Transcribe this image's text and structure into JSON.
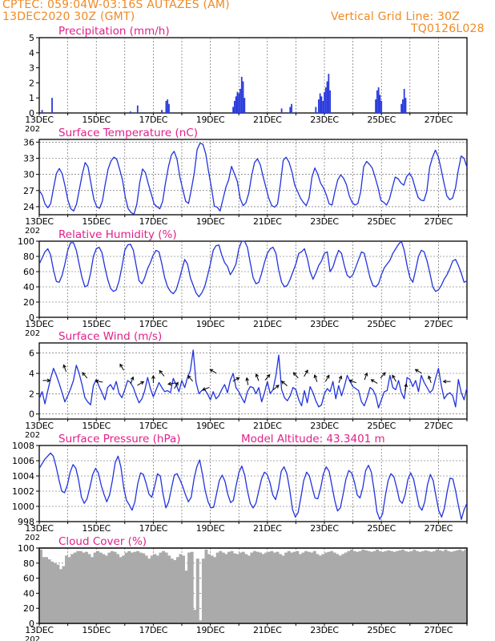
{
  "header": {
    "line1": "CPTEC:   059:04W-03:16S   AUTAZES (AM)",
    "line2": "13DEC2020 30Z (GMT)",
    "grid_note": "Vertical Grid Line: 30Z",
    "model_code": "TQ0126L028"
  },
  "colors": {
    "header": "#f08a24",
    "title": "#e0208a",
    "series": "#2233dd",
    "bar": "#2a3bdc",
    "cloud": "#aaaaaa",
    "grid": "#555555"
  },
  "x_axis": {
    "labels": [
      "13DEC",
      "15DEC",
      "17DEC",
      "19DEC",
      "21DEC",
      "23DEC",
      "25DEC",
      "27DEC"
    ],
    "year_prefix": "202"
  },
  "chart_data": [
    {
      "id": "precip",
      "type": "bar",
      "title": "Precipitation (mm/h)",
      "ylim": [
        0,
        5
      ],
      "yticks": [
        "0",
        "1",
        "2",
        "3",
        "4",
        "5"
      ],
      "days": 15,
      "bars": [
        [
          0.1,
          0.2
        ],
        [
          0.45,
          1.0
        ],
        [
          3.2,
          0.1
        ],
        [
          3.45,
          0.5
        ],
        [
          4.3,
          0.2
        ],
        [
          4.45,
          0.8
        ],
        [
          4.5,
          0.9
        ],
        [
          4.55,
          0.6
        ],
        [
          6.8,
          0.4
        ],
        [
          6.85,
          0.8
        ],
        [
          6.9,
          1.1
        ],
        [
          6.95,
          1.4
        ],
        [
          7.0,
          1.3
        ],
        [
          7.05,
          1.6
        ],
        [
          7.1,
          2.4
        ],
        [
          7.15,
          2.1
        ],
        [
          7.2,
          1.0
        ],
        [
          8.5,
          0.3
        ],
        [
          8.8,
          0.4
        ],
        [
          8.85,
          0.6
        ],
        [
          9.7,
          0.4
        ],
        [
          9.8,
          0.9
        ],
        [
          9.85,
          1.3
        ],
        [
          9.9,
          1.1
        ],
        [
          9.95,
          0.8
        ],
        [
          10.0,
          1.4
        ],
        [
          10.05,
          1.7
        ],
        [
          10.1,
          2.1
        ],
        [
          10.15,
          2.6
        ],
        [
          10.2,
          1.5
        ],
        [
          11.8,
          0.9
        ],
        [
          11.85,
          1.5
        ],
        [
          11.9,
          1.7
        ],
        [
          11.95,
          1.2
        ],
        [
          12.0,
          0.8
        ],
        [
          12.7,
          0.6
        ],
        [
          12.75,
          0.9
        ],
        [
          12.8,
          1.6
        ],
        [
          12.85,
          1.0
        ]
      ]
    },
    {
      "id": "temp",
      "type": "line",
      "title": "Surface Temperature (nC)",
      "ylim": [
        22.5,
        36.5
      ],
      "yticks": [
        "24",
        "27",
        "30",
        "33",
        "36"
      ],
      "ytick_values": [
        24,
        27,
        30,
        33,
        36
      ],
      "values": [
        27,
        26.2,
        24.5,
        23.8,
        24.6,
        27.5,
        30.2,
        31.1,
        30.1,
        27.8,
        25.2,
        23.6,
        23.2,
        24.5,
        27.3,
        30.1,
        32.2,
        31.4,
        28.4,
        25.4,
        24,
        23.7,
        25,
        28.2,
        31,
        32.5,
        33.2,
        32.8,
        31,
        29,
        25.7,
        23.6,
        22.9,
        22.6,
        24.5,
        28.4,
        31,
        30.3,
        28.2,
        26.4,
        24.5,
        24,
        23.6,
        25,
        28.5,
        31.4,
        33.6,
        34.3,
        32.8,
        29.5,
        27.2,
        25,
        24.6,
        27.2,
        30.2,
        34.6,
        35.8,
        35.6,
        33.8,
        30.5,
        27.5,
        24.1,
        23.9,
        23.2,
        25.4,
        27.6,
        29,
        31.5,
        30.1,
        28.7,
        25.5,
        24.2,
        24.7,
        26.5,
        29.8,
        32.2,
        32.9,
        31.8,
        29.6,
        27.5,
        25.5,
        24.2,
        23.9,
        24.5,
        28.1,
        32.6,
        33.2,
        32.3,
        30.5,
        28,
        26.8,
        25.6,
        24.8,
        24.2,
        25.6,
        29.5,
        31.2,
        30.1,
        28.4,
        27.5,
        26.2,
        24.5,
        24.3,
        26.8,
        29,
        29.9,
        29.3,
        28.1,
        26,
        24.8,
        24.3,
        24.6,
        26.8,
        31.4,
        32.4,
        31.9,
        31.2,
        29.5,
        27.6,
        25.2,
        24.8,
        24.3,
        25.4,
        27.5,
        29.5,
        29.2,
        28.4,
        28,
        29.6,
        30.2,
        29.3,
        27.4,
        25.7,
        25.2,
        25.1,
        26.8,
        31.3,
        33.2,
        34.5,
        33.3,
        31,
        28.4,
        26,
        25.3,
        25.6,
        27.5,
        30.8,
        33.4,
        33,
        31.3
      ]
    },
    {
      "id": "rh",
      "type": "line",
      "title": "Relative Humidity (%)",
      "ylim": [
        0,
        100
      ],
      "yticks": [
        "0",
        "20",
        "40",
        "60",
        "80",
        "100"
      ],
      "ytick_values": [
        0,
        20,
        40,
        60,
        80,
        100
      ],
      "values": [
        70,
        78,
        86,
        90,
        82,
        62,
        47,
        46,
        55,
        70,
        88,
        98,
        98,
        88,
        70,
        52,
        40,
        42,
        58,
        80,
        90,
        92,
        85,
        66,
        50,
        38,
        34,
        36,
        48,
        66,
        88,
        95,
        96,
        88,
        68,
        48,
        44,
        52,
        64,
        72,
        82,
        88,
        86,
        70,
        52,
        40,
        34,
        31,
        36,
        48,
        62,
        76,
        70,
        52,
        42,
        32,
        27,
        32,
        40,
        54,
        70,
        88,
        94,
        95,
        82,
        72,
        67,
        56,
        62,
        70,
        90,
        100,
        100,
        92,
        72,
        52,
        44,
        46,
        58,
        72,
        84,
        90,
        92,
        84,
        62,
        46,
        40,
        42,
        50,
        60,
        70,
        84,
        86,
        90,
        78,
        60,
        50,
        58,
        68,
        74,
        84,
        86,
        60,
        66,
        78,
        88,
        84,
        68,
        55,
        52,
        56,
        66,
        76,
        86,
        84,
        68,
        52,
        42,
        40,
        44,
        56,
        65,
        70,
        75,
        84,
        90,
        96,
        100,
        88,
        68,
        52,
        46,
        62,
        80,
        88,
        86,
        74,
        58,
        40,
        34,
        36,
        42,
        50,
        56,
        64,
        74,
        76,
        68,
        58,
        46,
        48
      ]
    },
    {
      "id": "wind",
      "type": "line",
      "title": "Surface Wind (m/s)",
      "ylim": [
        -0.5,
        7
      ],
      "yticks": [
        "0",
        "2",
        "4",
        "6"
      ],
      "ytick_values": [
        0,
        2,
        4,
        6
      ],
      "values": [
        1.5,
        2.2,
        1,
        2.3,
        3.5,
        4.5,
        3.8,
        3,
        2.1,
        1.2,
        1.8,
        2.5,
        3.3,
        4.8,
        4,
        2.9,
        1.6,
        1.2,
        0.9,
        2.8,
        3.4,
        2.7,
        2.1,
        1.4,
        2.6,
        2.9,
        2.4,
        3.2,
        2,
        1.6,
        2.4,
        3.3,
        3.1,
        2.6,
        1.8,
        1.1,
        1.5,
        2.3,
        3.6,
        2.5,
        1.7,
        2.4,
        3.1,
        2.6,
        2.2,
        2.3,
        2.1,
        3.5,
        2.9,
        2.2,
        3.3,
        2.6,
        3.6,
        4.3,
        6.3,
        3.1,
        2,
        2.3,
        2.4,
        2,
        1.4,
        2.2,
        1.5,
        1.8,
        2.4,
        2.9,
        2.1,
        3.3,
        4,
        2.6,
        2.2,
        1.6,
        1.1,
        2.2,
        2.7,
        2.6,
        2,
        2.6,
        1.2,
        2.1,
        3.2,
        2,
        2.4,
        3.8,
        5.8,
        2.4,
        1.6,
        1.3,
        1.8,
        2.6,
        2.4,
        1.4,
        0.8,
        2.3,
        1.1,
        2.7,
        2.1,
        1.3,
        0.7,
        0.9,
        2,
        2.5,
        2.2,
        3.2,
        1.5,
        2.8,
        1.8,
        2.7,
        3.8,
        3.2,
        2.7,
        2.5,
        2.3,
        1.2,
        0.8,
        1.6,
        2.6,
        2.4,
        1.8,
        0.6,
        1.4,
        2.2,
        2.3,
        3.8,
        2.6,
        2.4,
        3.3,
        2.1,
        1.5,
        3.6,
        3.4,
        2.7,
        3.3,
        2.2,
        3.8,
        3.1,
        2.6,
        2.1,
        2.4,
        3.5,
        4.5,
        2.8,
        1.5,
        1.9,
        2.1,
        1.8,
        0.7,
        3.4,
        2.1,
        1.4,
        2.6
      ]
    },
    {
      "id": "pres",
      "type": "line",
      "title": "Surface Pressure (hPa)",
      "annotation": "Model Altitude: 43.3401 m",
      "ylim": [
        998,
        1008
      ],
      "yticks": [
        "998",
        "1000",
        "1002",
        "1004",
        "1006",
        "1008"
      ],
      "ytick_values": [
        998,
        1000,
        1002,
        1004,
        1006,
        1008
      ],
      "values": [
        1005,
        1005.6,
        1006.2,
        1006.6,
        1007,
        1006.6,
        1005.2,
        1003.5,
        1002,
        1001.8,
        1002.8,
        1004.5,
        1005.5,
        1005,
        1003.4,
        1001.2,
        1000.4,
        1001,
        1002.5,
        1004.2,
        1005,
        1004.4,
        1002.8,
        1001.6,
        1000.6,
        1001.5,
        1003.4,
        1005.8,
        1006.6,
        1005.2,
        1002.5,
        1000.8,
        1000.2,
        999.5,
        1000.6,
        1003,
        1004.4,
        1004.2,
        1003,
        1001.6,
        1001.2,
        1002.6,
        1004.3,
        1004,
        1001.6,
        999.8,
        1000.6,
        1002.4,
        1004.1,
        1004.3,
        1003.5,
        1002.6,
        1001.5,
        1000.6,
        1001.2,
        1003.6,
        1005.2,
        1006.1,
        1004.2,
        1002,
        1000.6,
        999.8,
        999.9,
        1001.6,
        1003.4,
        1004.1,
        1003.3,
        1001.6,
        1000.5,
        1000.8,
        1002.8,
        1004.5,
        1005.3,
        1004.1,
        1002,
        1000.4,
        999.8,
        1000.4,
        1002,
        1003.6,
        1004.5,
        1004.2,
        1003.1,
        1001.5,
        1000.9,
        1002.3,
        1004.6,
        1005.2,
        1004.3,
        1002.2,
        999.6,
        998.6,
        999.2,
        1001.2,
        1003.4,
        1004.5,
        1004,
        1002.5,
        1001.1,
        1001,
        1002.4,
        1004.3,
        1005.2,
        1004.6,
        1002.7,
        1000.8,
        999.4,
        999.8,
        1001.6,
        1003.6,
        1004.7,
        1004.4,
        1003.2,
        1001.5,
        1001.1,
        1002.5,
        1004.7,
        1005.4,
        1004.5,
        1002.1,
        999.3,
        998.3,
        999,
        1001.4,
        1003.4,
        1004.3,
        1003.9,
        1002.5,
        1000.8,
        1000.4,
        1001.5,
        1003.5,
        1004.4,
        1003.6,
        1001.8,
        1000,
        999.5,
        1000.6,
        1002.9,
        1004.2,
        1003.4,
        1001.3,
        999.4,
        998.6,
        999.8,
        1002,
        1003.7,
        1003.6,
        1002,
        1000,
        998.3,
        999.6,
        1000.4
      ]
    },
    {
      "id": "cloud",
      "type": "area",
      "title": "Cloud Cover (%)",
      "ylim": [
        0,
        100
      ],
      "yticks": [
        "0",
        "20",
        "40",
        "60",
        "80",
        "100"
      ],
      "ytick_values": [
        0,
        20,
        40,
        60,
        80,
        100
      ],
      "values": [
        98,
        88,
        88,
        85,
        82,
        80,
        78,
        72,
        76,
        90,
        88,
        92,
        94,
        96,
        96,
        94,
        95,
        92,
        88,
        94,
        96,
        94,
        92,
        90,
        94,
        96,
        95,
        92,
        88,
        90,
        94,
        96,
        94,
        95,
        96,
        94,
        93,
        90,
        86,
        90,
        92,
        90,
        94,
        96,
        94,
        90,
        86,
        84,
        88,
        92,
        90,
        70,
        94,
        95,
        18,
        86,
        4,
        86,
        98,
        92,
        90,
        88,
        94,
        96,
        94,
        92,
        95,
        96,
        93,
        92,
        94,
        95,
        92,
        90,
        94,
        96,
        95,
        94,
        92,
        94,
        95,
        96,
        94,
        95,
        92,
        90,
        94,
        96,
        94,
        95,
        96,
        92,
        94,
        96,
        95,
        94,
        96,
        92,
        90,
        92,
        94,
        95,
        96,
        94,
        92,
        90,
        92,
        94,
        96,
        98,
        96,
        95,
        96,
        98,
        97,
        96,
        95,
        96,
        98,
        96,
        95,
        96,
        97,
        96,
        95,
        96,
        97,
        98,
        96,
        95,
        96,
        98,
        96,
        95,
        96,
        97,
        96,
        95,
        96,
        98,
        97,
        96,
        98,
        96,
        95,
        96,
        97,
        98,
        96,
        98
      ]
    }
  ],
  "wind_arrows": [
    [
      0.25,
      3.3,
      0
    ],
    [
      0.9,
      4.5,
      110
    ],
    [
      1.6,
      3.8,
      130
    ],
    [
      2.1,
      3.2,
      170
    ],
    [
      2.9,
      4.6,
      120
    ],
    [
      3.25,
      3.3,
      70
    ],
    [
      3.55,
      3.0,
      30
    ],
    [
      4.0,
      3.4,
      90
    ],
    [
      4.3,
      4.0,
      130
    ],
    [
      4.65,
      3.0,
      190
    ],
    [
      4.8,
      2.8,
      60
    ],
    [
      5.3,
      3.5,
      130
    ],
    [
      5.85,
      2.5,
      200
    ],
    [
      6.1,
      4.2,
      150
    ],
    [
      6.9,
      3.4,
      30
    ],
    [
      7.3,
      3.2,
      100
    ],
    [
      7.65,
      3.6,
      110
    ],
    [
      8.0,
      3.6,
      50
    ],
    [
      8.3,
      2.6,
      40
    ],
    [
      8.6,
      3.0,
      140
    ],
    [
      9.0,
      3.8,
      130
    ],
    [
      9.35,
      4.0,
      60
    ],
    [
      9.7,
      3.5,
      110
    ],
    [
      10.1,
      3.5,
      60
    ],
    [
      10.55,
      3.4,
      70
    ],
    [
      11.0,
      3.2,
      160
    ],
    [
      11.45,
      3.7,
      70
    ],
    [
      11.75,
      3.2,
      150
    ],
    [
      12.05,
      3.8,
      50
    ],
    [
      12.45,
      3.5,
      120
    ],
    [
      12.85,
      2.6,
      80
    ],
    [
      13.3,
      4.2,
      150
    ],
    [
      13.7,
      3.4,
      110
    ],
    [
      14.3,
      3.2,
      180
    ]
  ]
}
